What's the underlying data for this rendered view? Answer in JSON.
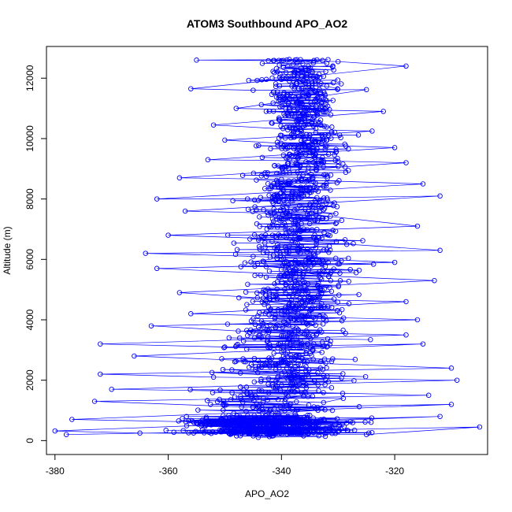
{
  "chart_data": {
    "type": "scatter",
    "title": "ATOM3 Southbound APO_AO2",
    "xlabel": "APO_AO2",
    "ylabel": "Altitude (m)",
    "xlim": [
      -381.5,
      -303.6
    ],
    "ylim": [
      -460,
      13050
    ],
    "xticks": [
      -380,
      -360,
      -340,
      -320
    ],
    "yticks": [
      0,
      2000,
      4000,
      6000,
      8000,
      10000,
      12000
    ],
    "grid": false,
    "legend": "none",
    "colors": {
      "series": "#0000ff"
    },
    "series_style": "points connected by lines",
    "sample_points": [
      {
        "x": -355,
        "y": 12600
      },
      {
        "x": -340,
        "y": 12580
      },
      {
        "x": -330,
        "y": 12550
      },
      {
        "x": -318,
        "y": 12400
      },
      {
        "x": -356,
        "y": 11650
      },
      {
        "x": -345,
        "y": 11600
      },
      {
        "x": -325,
        "y": 11620
      },
      {
        "x": -348,
        "y": 11000
      },
      {
        "x": -335,
        "y": 10950
      },
      {
        "x": -322,
        "y": 10900
      },
      {
        "x": -352,
        "y": 10450
      },
      {
        "x": -338,
        "y": 10300
      },
      {
        "x": -324,
        "y": 10250
      },
      {
        "x": -350,
        "y": 9950
      },
      {
        "x": -336,
        "y": 9800
      },
      {
        "x": -320,
        "y": 9700
      },
      {
        "x": -353,
        "y": 9300
      },
      {
        "x": -330,
        "y": 9250
      },
      {
        "x": -318,
        "y": 9200
      },
      {
        "x": -358,
        "y": 8700
      },
      {
        "x": -340,
        "y": 8650
      },
      {
        "x": -315,
        "y": 8500
      },
      {
        "x": -362,
        "y": 8000
      },
      {
        "x": -346,
        "y": 8000
      },
      {
        "x": -312,
        "y": 8100
      },
      {
        "x": -357,
        "y": 7600
      },
      {
        "x": -335,
        "y": 7500
      },
      {
        "x": -316,
        "y": 7100
      },
      {
        "x": -360,
        "y": 6800
      },
      {
        "x": -344,
        "y": 6700
      },
      {
        "x": -312,
        "y": 6300
      },
      {
        "x": -364,
        "y": 6200
      },
      {
        "x": -345,
        "y": 6100
      },
      {
        "x": -320,
        "y": 5900
      },
      {
        "x": -362,
        "y": 5700
      },
      {
        "x": -338,
        "y": 5500
      },
      {
        "x": -313,
        "y": 5300
      },
      {
        "x": -358,
        "y": 4900
      },
      {
        "x": -342,
        "y": 4700
      },
      {
        "x": -318,
        "y": 4600
      },
      {
        "x": -356,
        "y": 4200
      },
      {
        "x": -336,
        "y": 4100
      },
      {
        "x": -316,
        "y": 4000
      },
      {
        "x": -363,
        "y": 3800
      },
      {
        "x": -345,
        "y": 3600
      },
      {
        "x": -318,
        "y": 3500
      },
      {
        "x": -372,
        "y": 3200
      },
      {
        "x": -350,
        "y": 3100
      },
      {
        "x": -315,
        "y": 3200
      },
      {
        "x": -366,
        "y": 2800
      },
      {
        "x": -340,
        "y": 2600
      },
      {
        "x": -310,
        "y": 2400
      },
      {
        "x": -372,
        "y": 2200
      },
      {
        "x": -352,
        "y": 2100
      },
      {
        "x": -309,
        "y": 2000
      },
      {
        "x": -370,
        "y": 1700
      },
      {
        "x": -336,
        "y": 1600
      },
      {
        "x": -314,
        "y": 1500
      },
      {
        "x": -373,
        "y": 1300
      },
      {
        "x": -345,
        "y": 1100
      },
      {
        "x": -310,
        "y": 1200
      },
      {
        "x": -377,
        "y": 700
      },
      {
        "x": -350,
        "y": 600
      },
      {
        "x": -312,
        "y": 800
      },
      {
        "x": -380,
        "y": 320
      },
      {
        "x": -365,
        "y": 250
      },
      {
        "x": -340,
        "y": 220
      },
      {
        "x": -325,
        "y": 200
      },
      {
        "x": -305,
        "y": 450
      },
      {
        "x": -378,
        "y": 200
      }
    ]
  }
}
